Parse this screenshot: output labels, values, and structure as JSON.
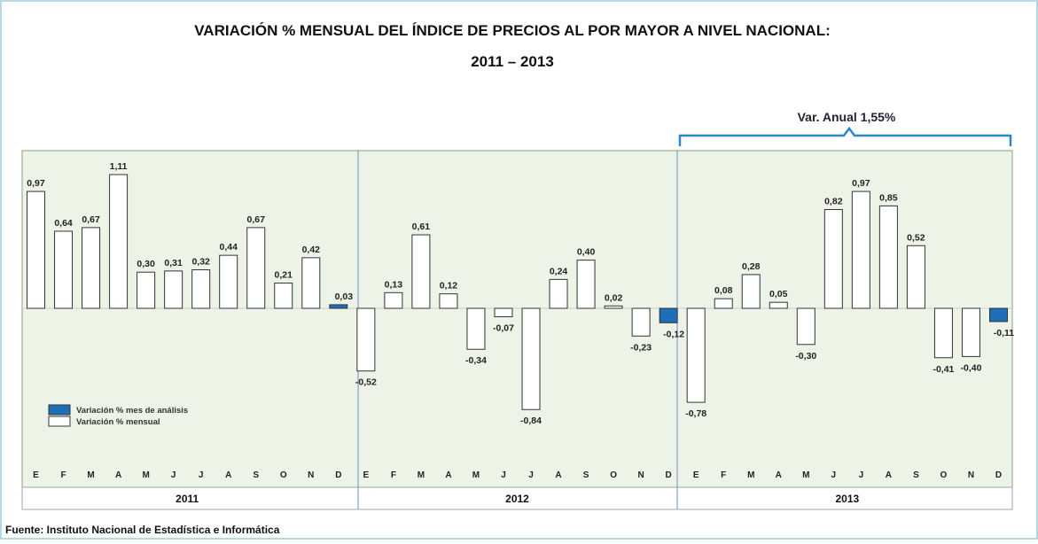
{
  "chart_data": {
    "type": "bar",
    "title": "VARIACIÓN % MENSUAL DEL ÍNDICE DE  PRECIOS AL POR MAYOR A NIVEL NACIONAL:",
    "subtitle": "2011 – 2013",
    "annotation": "Var. Anual  1,55%",
    "source": "Fuente: Instituto Nacional de Estadística e Informática",
    "categories": [
      "E",
      "F",
      "M",
      "A",
      "M",
      "J",
      "J",
      "A",
      "S",
      "O",
      "N",
      "D",
      "E",
      "F",
      "M",
      "A",
      "M",
      "J",
      "J",
      "A",
      "S",
      "O",
      "N",
      "D",
      "E",
      "F",
      "M",
      "A",
      "M",
      "J",
      "J",
      "A",
      "S",
      "O",
      "N",
      "D"
    ],
    "years": [
      "2011",
      "2012",
      "2013"
    ],
    "series": [
      {
        "name": "Variación % mes de análisis",
        "color": "#1f6fb8",
        "values": [
          null,
          null,
          null,
          null,
          null,
          null,
          null,
          null,
          null,
          null,
          null,
          0.03,
          null,
          null,
          null,
          null,
          null,
          null,
          null,
          null,
          null,
          null,
          null,
          -0.12,
          null,
          null,
          null,
          null,
          null,
          null,
          null,
          null,
          null,
          null,
          null,
          -0.11
        ],
        "value_labels": [
          null,
          null,
          null,
          null,
          null,
          null,
          null,
          null,
          null,
          null,
          null,
          "0,03",
          null,
          null,
          null,
          null,
          null,
          null,
          null,
          null,
          null,
          null,
          null,
          "-0,12",
          null,
          null,
          null,
          null,
          null,
          null,
          null,
          null,
          null,
          null,
          null,
          "-0,11"
        ]
      },
      {
        "name": "Variación % mensual",
        "color": "#ffffff",
        "values": [
          0.97,
          0.64,
          0.67,
          1.11,
          0.3,
          0.31,
          0.32,
          0.44,
          0.67,
          0.21,
          0.42,
          null,
          -0.52,
          0.13,
          0.61,
          0.12,
          -0.34,
          -0.07,
          -0.84,
          0.24,
          0.4,
          0.02,
          -0.23,
          null,
          -0.78,
          0.08,
          0.28,
          0.05,
          -0.3,
          0.82,
          0.97,
          0.85,
          0.52,
          -0.41,
          -0.4,
          null
        ],
        "value_labels": [
          "0,97",
          "0,64",
          "0,67",
          "1,11",
          "0,30",
          "0,31",
          "0,32",
          "0,44",
          "0,67",
          "0,21",
          "0,42",
          null,
          "-0,52",
          "0,13",
          "0,61",
          "0,12",
          "-0,34",
          "-0,07",
          "-0,84",
          "0,24",
          "0,40",
          "0,02",
          "-0,23",
          null,
          "-0,78",
          "0,08",
          "0,28",
          "0,05",
          "-0,30",
          "0,82",
          "0,97",
          "0,85",
          "0,52",
          "-0,41",
          "-0,40",
          null
        ]
      }
    ]
  }
}
